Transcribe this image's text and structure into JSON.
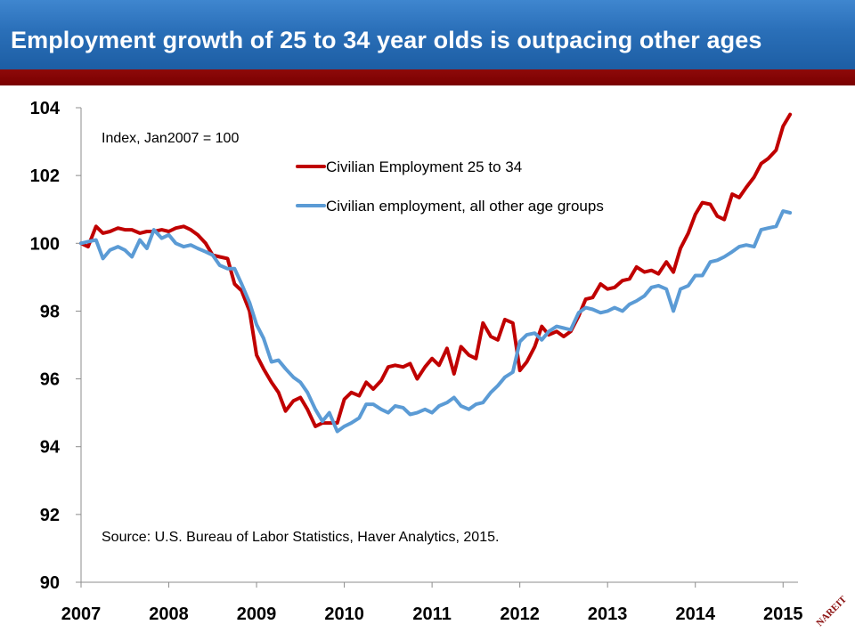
{
  "slide": {
    "title": "Employment growth of 25 to 34 year olds is outpacing other ages"
  },
  "colors": {
    "title_bar": "#2a6fb8",
    "accent_bar": "#7a0000",
    "series_25_34": "#c00000",
    "series_other": "#5b9bd5"
  },
  "logo": {
    "text": "NAREIT"
  },
  "chart_data": {
    "type": "line",
    "annotation_note": "Index, Jan2007 = 100",
    "source_note": "Source: U.S. Bureau of Labor Statistics, Haver Analytics, 2015.",
    "x_ticks": [
      "2007",
      "2008",
      "2009",
      "2010",
      "2011",
      "2012",
      "2013",
      "2014",
      "2015"
    ],
    "y_ticks": [
      "90",
      "92",
      "94",
      "96",
      "98",
      "100",
      "102",
      "104"
    ],
    "ylim": [
      90,
      104
    ],
    "xlim": [
      2007.0,
      2015.17
    ],
    "grid": false,
    "legend_position": "top-center",
    "series": [
      {
        "name": "Civilian Employment 25 to 34",
        "color": "#c00000",
        "points": [
          [
            2007.0,
            100.0
          ],
          [
            2007.08,
            99.9
          ],
          [
            2007.17,
            100.5
          ],
          [
            2007.25,
            100.3
          ],
          [
            2007.33,
            100.35
          ],
          [
            2007.42,
            100.45
          ],
          [
            2007.5,
            100.4
          ],
          [
            2007.58,
            100.4
          ],
          [
            2007.67,
            100.3
          ],
          [
            2007.75,
            100.35
          ],
          [
            2007.83,
            100.35
          ],
          [
            2007.92,
            100.4
          ],
          [
            2008.0,
            100.35
          ],
          [
            2008.08,
            100.45
          ],
          [
            2008.17,
            100.5
          ],
          [
            2008.25,
            100.4
          ],
          [
            2008.33,
            100.25
          ],
          [
            2008.42,
            100.0
          ],
          [
            2008.5,
            99.65
          ],
          [
            2008.58,
            99.6
          ],
          [
            2008.67,
            99.55
          ],
          [
            2008.75,
            98.8
          ],
          [
            2008.83,
            98.6
          ],
          [
            2008.92,
            98.0
          ],
          [
            2009.0,
            96.7
          ],
          [
            2009.08,
            96.3
          ],
          [
            2009.17,
            95.9
          ],
          [
            2009.25,
            95.6
          ],
          [
            2009.33,
            95.05
          ],
          [
            2009.42,
            95.35
          ],
          [
            2009.5,
            95.45
          ],
          [
            2009.58,
            95.1
          ],
          [
            2009.67,
            94.6
          ],
          [
            2009.75,
            94.7
          ],
          [
            2009.83,
            94.7
          ],
          [
            2009.92,
            94.7
          ],
          [
            2010.0,
            95.4
          ],
          [
            2010.08,
            95.6
          ],
          [
            2010.17,
            95.5
          ],
          [
            2010.25,
            95.9
          ],
          [
            2010.33,
            95.7
          ],
          [
            2010.42,
            95.95
          ],
          [
            2010.5,
            96.35
          ],
          [
            2010.58,
            96.4
          ],
          [
            2010.67,
            96.35
          ],
          [
            2010.75,
            96.45
          ],
          [
            2010.83,
            96.0
          ],
          [
            2010.92,
            96.35
          ],
          [
            2011.0,
            96.6
          ],
          [
            2011.08,
            96.4
          ],
          [
            2011.17,
            96.9
          ],
          [
            2011.25,
            96.15
          ],
          [
            2011.33,
            96.95
          ],
          [
            2011.42,
            96.7
          ],
          [
            2011.5,
            96.6
          ],
          [
            2011.58,
            97.65
          ],
          [
            2011.67,
            97.25
          ],
          [
            2011.75,
            97.15
          ],
          [
            2011.83,
            97.75
          ],
          [
            2011.92,
            97.65
          ],
          [
            2012.0,
            96.25
          ],
          [
            2012.08,
            96.5
          ],
          [
            2012.17,
            96.95
          ],
          [
            2012.25,
            97.55
          ],
          [
            2012.33,
            97.3
          ],
          [
            2012.42,
            97.4
          ],
          [
            2012.5,
            97.25
          ],
          [
            2012.58,
            97.4
          ],
          [
            2012.67,
            97.85
          ],
          [
            2012.75,
            98.35
          ],
          [
            2012.83,
            98.4
          ],
          [
            2012.92,
            98.8
          ],
          [
            2013.0,
            98.65
          ],
          [
            2013.08,
            98.7
          ],
          [
            2013.17,
            98.9
          ],
          [
            2013.25,
            98.95
          ],
          [
            2013.33,
            99.3
          ],
          [
            2013.42,
            99.15
          ],
          [
            2013.5,
            99.2
          ],
          [
            2013.58,
            99.1
          ],
          [
            2013.67,
            99.45
          ],
          [
            2013.75,
            99.15
          ],
          [
            2013.83,
            99.85
          ],
          [
            2013.92,
            100.3
          ],
          [
            2014.0,
            100.85
          ],
          [
            2014.08,
            101.2
          ],
          [
            2014.17,
            101.15
          ],
          [
            2014.25,
            100.8
          ],
          [
            2014.33,
            100.7
          ],
          [
            2014.42,
            101.45
          ],
          [
            2014.5,
            101.35
          ],
          [
            2014.58,
            101.65
          ],
          [
            2014.67,
            101.95
          ],
          [
            2014.75,
            102.35
          ],
          [
            2014.83,
            102.5
          ],
          [
            2014.92,
            102.75
          ],
          [
            2015.0,
            103.45
          ],
          [
            2015.08,
            103.8
          ]
        ]
      },
      {
        "name": "Civilian employment, all other age groups",
        "color": "#5b9bd5",
        "points": [
          [
            2007.0,
            100.0
          ],
          [
            2007.08,
            100.05
          ],
          [
            2007.17,
            100.1
          ],
          [
            2007.25,
            99.55
          ],
          [
            2007.33,
            99.8
          ],
          [
            2007.42,
            99.9
          ],
          [
            2007.5,
            99.8
          ],
          [
            2007.58,
            99.6
          ],
          [
            2007.67,
            100.1
          ],
          [
            2007.75,
            99.85
          ],
          [
            2007.83,
            100.4
          ],
          [
            2007.92,
            100.15
          ],
          [
            2008.0,
            100.25
          ],
          [
            2008.08,
            100.0
          ],
          [
            2008.17,
            99.9
          ],
          [
            2008.25,
            99.95
          ],
          [
            2008.33,
            99.85
          ],
          [
            2008.42,
            99.75
          ],
          [
            2008.5,
            99.65
          ],
          [
            2008.58,
            99.35
          ],
          [
            2008.67,
            99.25
          ],
          [
            2008.75,
            99.25
          ],
          [
            2008.83,
            98.8
          ],
          [
            2008.92,
            98.25
          ],
          [
            2009.0,
            97.6
          ],
          [
            2009.08,
            97.2
          ],
          [
            2009.17,
            96.5
          ],
          [
            2009.25,
            96.55
          ],
          [
            2009.33,
            96.3
          ],
          [
            2009.42,
            96.05
          ],
          [
            2009.5,
            95.9
          ],
          [
            2009.58,
            95.6
          ],
          [
            2009.67,
            95.1
          ],
          [
            2009.75,
            94.75
          ],
          [
            2009.83,
            95.0
          ],
          [
            2009.92,
            94.45
          ],
          [
            2010.0,
            94.6
          ],
          [
            2010.08,
            94.7
          ],
          [
            2010.17,
            94.85
          ],
          [
            2010.25,
            95.25
          ],
          [
            2010.33,
            95.25
          ],
          [
            2010.42,
            95.1
          ],
          [
            2010.5,
            95.0
          ],
          [
            2010.58,
            95.2
          ],
          [
            2010.67,
            95.15
          ],
          [
            2010.75,
            94.95
          ],
          [
            2010.83,
            95.0
          ],
          [
            2010.92,
            95.1
          ],
          [
            2011.0,
            95.0
          ],
          [
            2011.08,
            95.2
          ],
          [
            2011.17,
            95.3
          ],
          [
            2011.25,
            95.45
          ],
          [
            2011.33,
            95.2
          ],
          [
            2011.42,
            95.1
          ],
          [
            2011.5,
            95.25
          ],
          [
            2011.58,
            95.3
          ],
          [
            2011.67,
            95.6
          ],
          [
            2011.75,
            95.8
          ],
          [
            2011.83,
            96.05
          ],
          [
            2011.92,
            96.2
          ],
          [
            2012.0,
            97.1
          ],
          [
            2012.08,
            97.3
          ],
          [
            2012.17,
            97.35
          ],
          [
            2012.25,
            97.15
          ],
          [
            2012.33,
            97.4
          ],
          [
            2012.42,
            97.55
          ],
          [
            2012.5,
            97.5
          ],
          [
            2012.58,
            97.45
          ],
          [
            2012.67,
            97.95
          ],
          [
            2012.75,
            98.1
          ],
          [
            2012.83,
            98.05
          ],
          [
            2012.92,
            97.95
          ],
          [
            2013.0,
            98.0
          ],
          [
            2013.08,
            98.1
          ],
          [
            2013.17,
            98.0
          ],
          [
            2013.25,
            98.2
          ],
          [
            2013.33,
            98.3
          ],
          [
            2013.42,
            98.45
          ],
          [
            2013.5,
            98.7
          ],
          [
            2013.58,
            98.75
          ],
          [
            2013.67,
            98.65
          ],
          [
            2013.75,
            98.0
          ],
          [
            2013.83,
            98.65
          ],
          [
            2013.92,
            98.75
          ],
          [
            2014.0,
            99.05
          ],
          [
            2014.08,
            99.05
          ],
          [
            2014.17,
            99.45
          ],
          [
            2014.25,
            99.5
          ],
          [
            2014.33,
            99.6
          ],
          [
            2014.42,
            99.75
          ],
          [
            2014.5,
            99.9
          ],
          [
            2014.58,
            99.95
          ],
          [
            2014.67,
            99.9
          ],
          [
            2014.75,
            100.4
          ],
          [
            2014.83,
            100.45
          ],
          [
            2014.92,
            100.5
          ],
          [
            2015.0,
            100.95
          ],
          [
            2015.08,
            100.9
          ]
        ]
      }
    ]
  }
}
